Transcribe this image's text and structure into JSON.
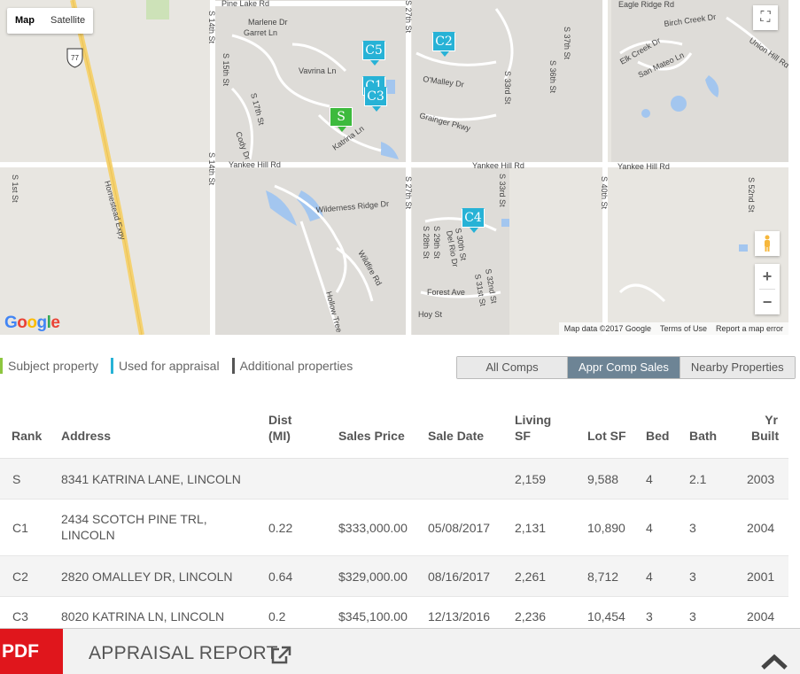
{
  "map": {
    "type_buttons": [
      "Map",
      "Satellite"
    ],
    "active_type": "Map",
    "logo": "Google",
    "attribution": [
      "Map data ©2017 Google",
      "Terms of Use",
      "Report a map error"
    ],
    "zoom_in": "+",
    "zoom_out": "−",
    "streets": {
      "pine_lake": "Pine Lake Rd",
      "marlene": "Marlene Dr",
      "garret": "Garret Ln",
      "vavrina": "Vavrina Ln",
      "omalley": "O'Malley Dr",
      "grainger": "Grainger Pkwy",
      "katrina": "Katrina Ln",
      "cody": "Cody Dr",
      "yankee_left": "Yankee Hill Rd",
      "yankee_mid": "Yankee Hill Rd",
      "yankee_right": "Yankee Hill Rd",
      "wilderness": "Wilderness Ridge Dr",
      "wildfire": "Wildfire Rd",
      "hollow": "Hollow Tree",
      "forest": "Forest Ave",
      "hoy": "Hoy St",
      "homestead": "Homestead Expy",
      "s1st": "S 1st St",
      "s14th_top": "S 14th St",
      "s14th_bot": "S 14th St",
      "s15th": "S 15th St",
      "s17th": "S 17th St",
      "s27th_top": "S 27th St",
      "s27th_bot": "S 27th St",
      "s28th": "S 28th St",
      "s29th": "S 29th St",
      "delrio": "Del Rio Dr",
      "s30th": "S 30th St",
      "s31st": "S 31st St",
      "s32nd": "S 32nd St",
      "s33rd_top": "S 33rd St",
      "s33rd_bot": "S 33rd St",
      "s36th": "S 36th St",
      "s37th": "S 37th St",
      "s40th": "S 40th St",
      "s52nd": "S 52nd St",
      "birch": "Birch Creek Dr",
      "elk": "Elk Creek Dr",
      "sanmateo": "San Mateo Ln",
      "union": "Union Hill Rd",
      "eagle": "Eagle Ridge Rd",
      "hwy": "77"
    },
    "markers": [
      {
        "label": "C5",
        "kind": "comp"
      },
      {
        "label": "C2",
        "kind": "comp"
      },
      {
        "label": "C1",
        "kind": "comp"
      },
      {
        "label": "C3",
        "kind": "comp"
      },
      {
        "label": "S",
        "kind": "subject"
      },
      {
        "label": "C4",
        "kind": "comp"
      }
    ]
  },
  "legend": [
    {
      "label": "Subject property",
      "color": "#8dc63f"
    },
    {
      "label": "Used for appraisal",
      "color": "#27b2d6"
    },
    {
      "label": "Additional properties",
      "color": "#555555"
    }
  ],
  "tabs": [
    {
      "label": "All Comps",
      "active": false
    },
    {
      "label": "Appr Comp Sales",
      "active": true
    },
    {
      "label": "Nearby Properties",
      "active": false
    }
  ],
  "table": {
    "headers": {
      "rank": "Rank",
      "address": "Address",
      "dist": [
        "Dist",
        "(MI)"
      ],
      "price": "Sales Price",
      "date": "Sale Date",
      "living": [
        "Living",
        "SF"
      ],
      "lot": "Lot SF",
      "bed": "Bed",
      "bath": "Bath",
      "yr": [
        "Yr",
        "Built"
      ]
    },
    "rows": [
      {
        "rank": "S",
        "address": [
          "8341 KATRINA LANE, LINCOLN"
        ],
        "dist": "",
        "price": "",
        "date": "",
        "living": "2,159",
        "lot": "9,588",
        "bed": "4",
        "bath": "2.1",
        "yr": "2003"
      },
      {
        "rank": "C1",
        "address": [
          "2434 SCOTCH PINE TRL,",
          "LINCOLN"
        ],
        "dist": "0.22",
        "price": "$333,000.00",
        "date": "05/08/2017",
        "living": "2,131",
        "lot": "10,890",
        "bed": "4",
        "bath": "3",
        "yr": "2004"
      },
      {
        "rank": "C2",
        "address": [
          "2820 OMALLEY DR, LINCOLN"
        ],
        "dist": "0.64",
        "price": "$329,000.00",
        "date": "08/16/2017",
        "living": "2,261",
        "lot": "8,712",
        "bed": "4",
        "bath": "3",
        "yr": "2001"
      },
      {
        "rank": "C3",
        "address": [
          "8020 KATRINA LN, LINCOLN"
        ],
        "dist": "0.2",
        "price": "$345,100.00",
        "date": "12/13/2016",
        "living": "2,236",
        "lot": "10,454",
        "bed": "3",
        "bath": "3",
        "yr": "2004"
      }
    ]
  },
  "footer": {
    "pdf_label": "PDF",
    "report_label": "APPRAISAL REPORT"
  }
}
